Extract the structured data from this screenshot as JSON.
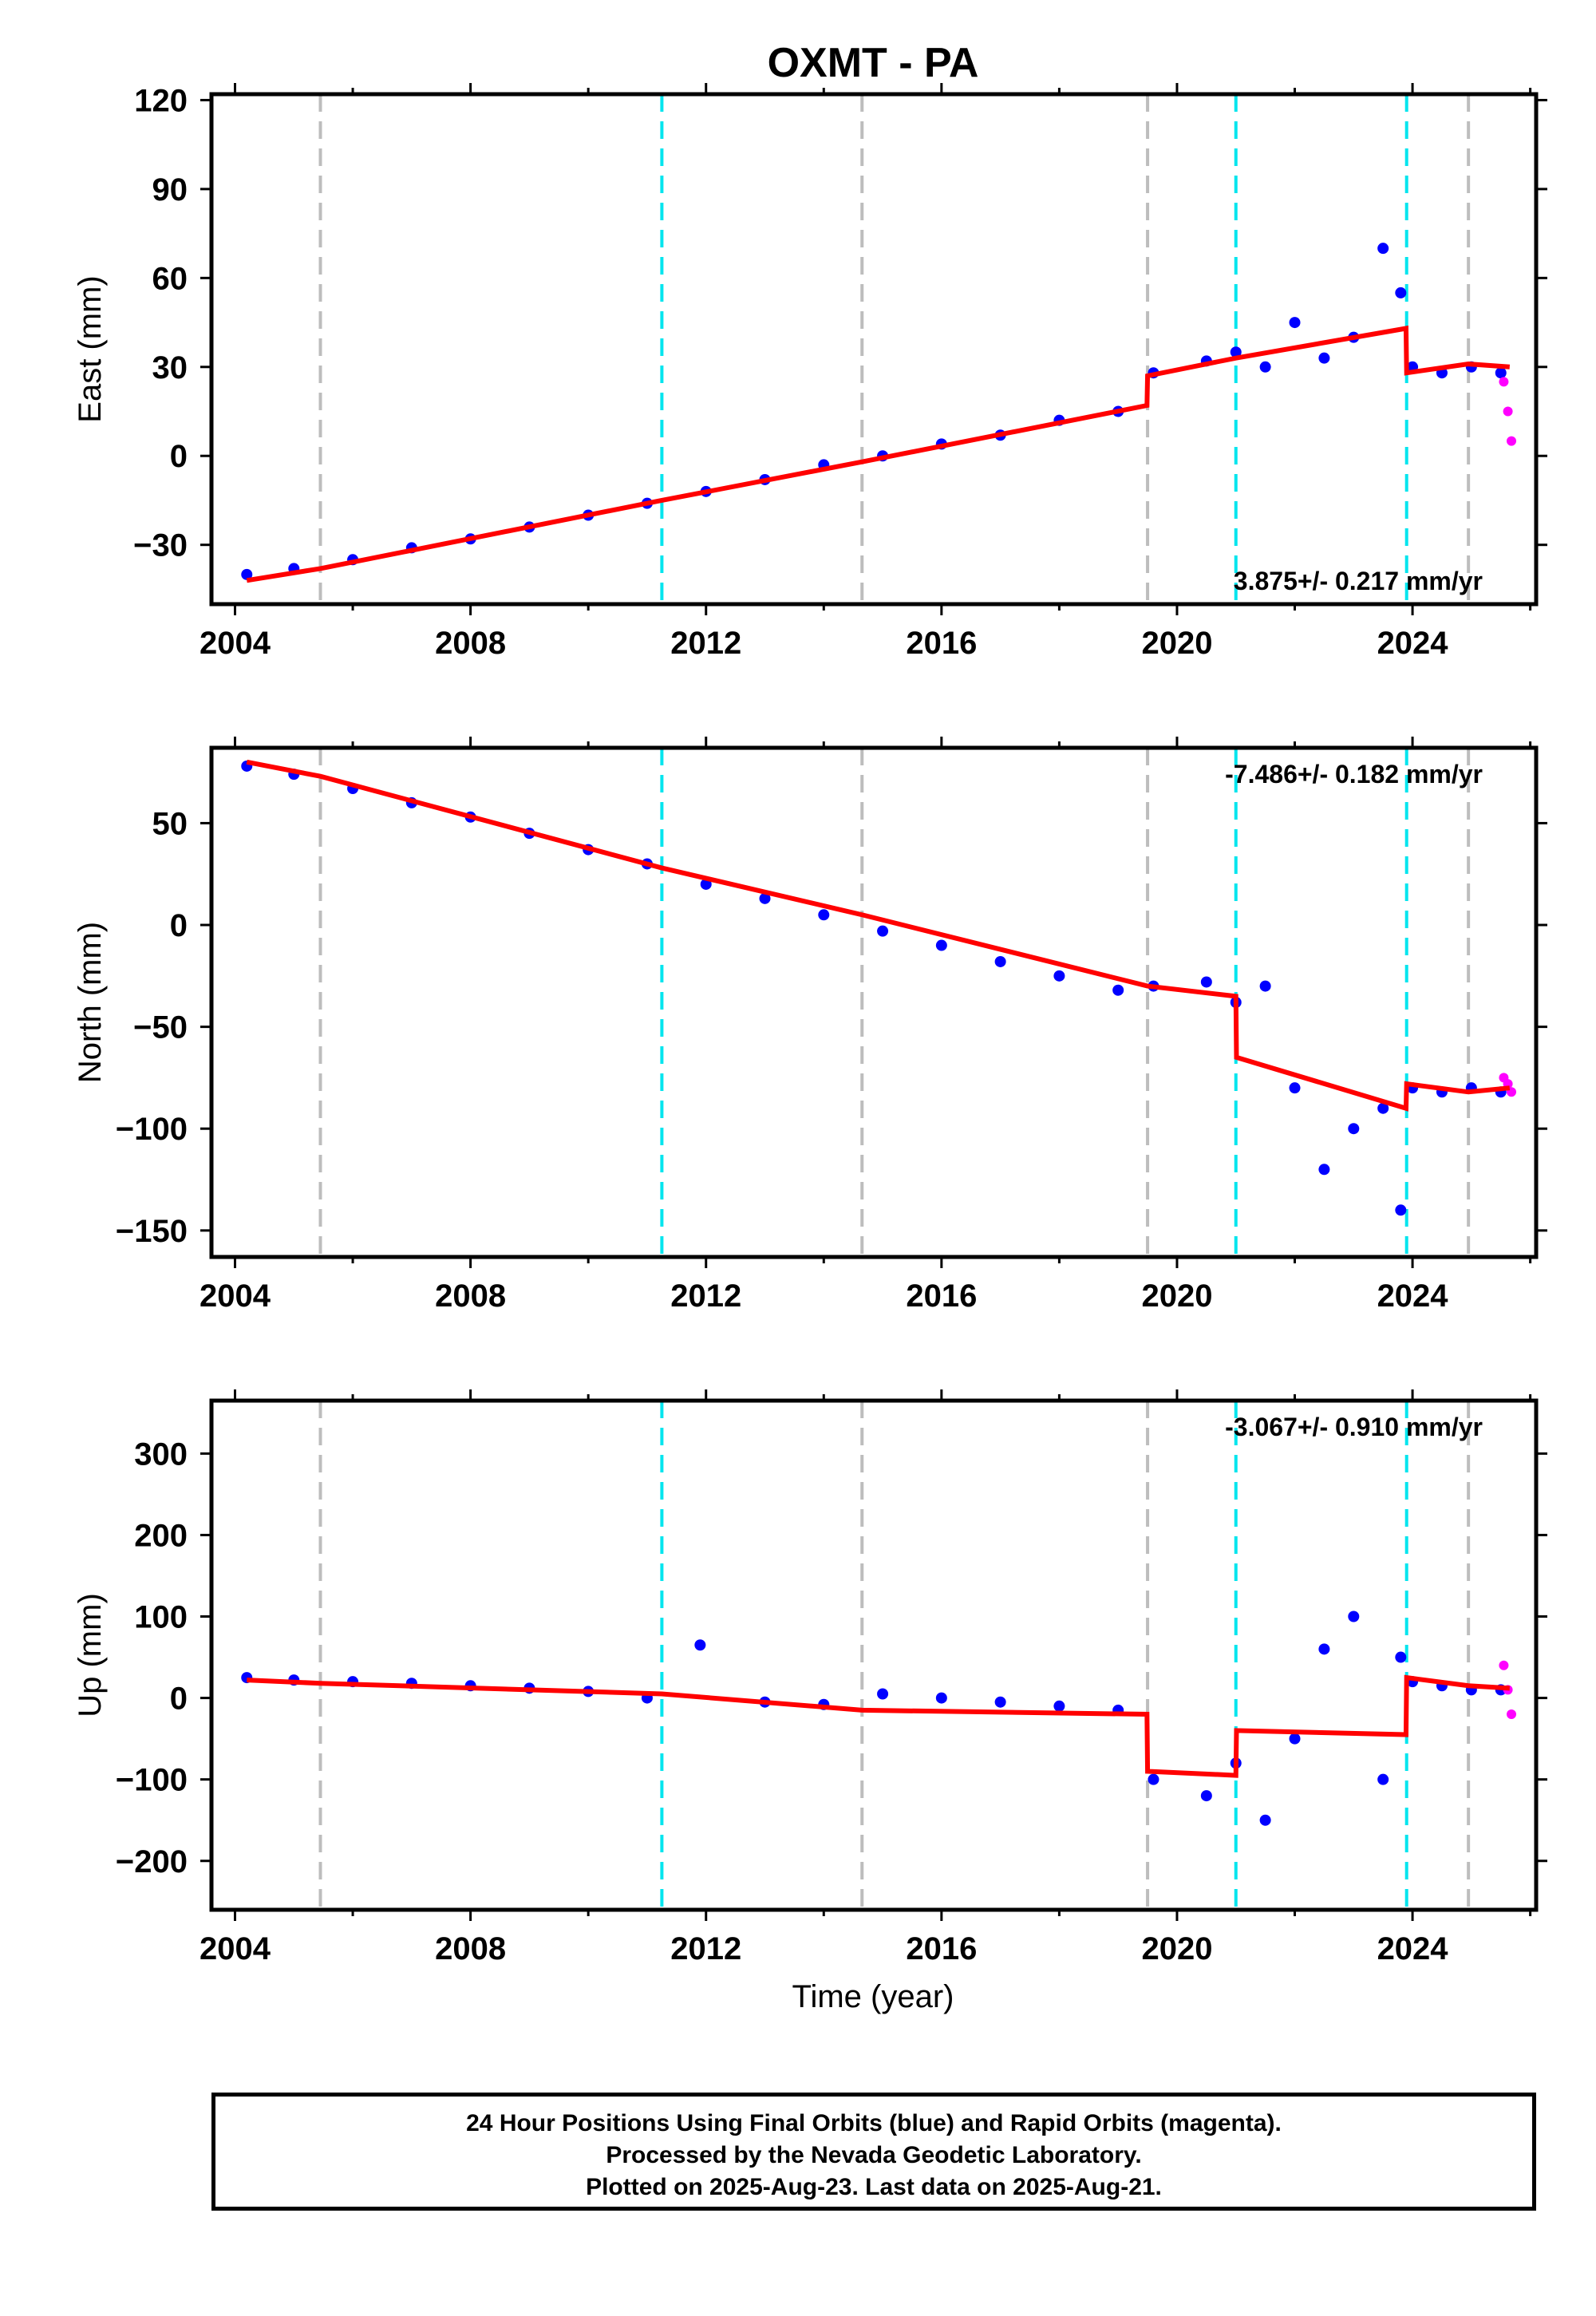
{
  "chart_data": {
    "type": "scatter",
    "title": "OXMT - PA",
    "xlabel": "Time (year)",
    "xlim": [
      2003.6,
      2026.1
    ],
    "x_ticks": [
      2004,
      2008,
      2012,
      2016,
      2020,
      2024
    ],
    "vertical_lines": {
      "gray_dashed": [
        2005.45,
        2014.65,
        2019.5,
        2024.95
      ],
      "cyan_dashed": [
        2011.25,
        2021.0,
        2023.9
      ]
    },
    "panels": [
      {
        "name": "east",
        "ylabel": "East (mm)",
        "ylim": [
          -50,
          122
        ],
        "y_ticks": [
          -30,
          0,
          30,
          60,
          90,
          120
        ],
        "rate_label": "3.875+/- 0.217 mm/yr",
        "series": [
          {
            "color": "#0000ff",
            "x": [
              2004.2,
              2005.0,
              2006.0,
              2007.0,
              2008.0,
              2009.0,
              2010.0,
              2011.0,
              2012.0,
              2013.0,
              2014.0,
              2015.0,
              2016.0,
              2017.0,
              2018.0,
              2019.0,
              2019.6,
              2020.5,
              2021.0,
              2021.5,
              2022.0,
              2022.5,
              2023.0,
              2023.5,
              2023.8,
              2024.0,
              2024.5,
              2025.0,
              2025.5
            ],
            "y": [
              -40,
              -38,
              -35,
              -31,
              -28,
              -24,
              -20,
              -16,
              -12,
              -8,
              -3,
              0,
              4,
              7,
              12,
              15,
              28,
              32,
              35,
              30,
              45,
              33,
              40,
              70,
              55,
              30,
              28,
              30,
              28
            ]
          },
          {
            "color": "#ff00ff",
            "x": [
              2025.55,
              2025.62,
              2025.68
            ],
            "y": [
              25,
              15,
              5
            ]
          },
          {
            "color": "#ff0000",
            "x": [
              2004.2,
              2005.45,
              2011.25,
              2014.65,
              2019.49,
              2019.5,
              2021.0,
              2023.89,
              2023.9,
              2024.95,
              2025.65
            ],
            "y": [
              -42,
              -38,
              -15,
              -2,
              17,
              27,
              33,
              43,
              28,
              31,
              30
            ]
          }
        ]
      },
      {
        "name": "north",
        "ylabel": "North (mm)",
        "ylim": [
          -163,
          87
        ],
        "y_ticks": [
          -150,
          -100,
          -50,
          0,
          50
        ],
        "rate_label": "-7.486+/- 0.182 mm/yr",
        "series": [
          {
            "color": "#0000ff",
            "x": [
              2004.2,
              2005.0,
              2006.0,
              2007.0,
              2008.0,
              2009.0,
              2010.0,
              2011.0,
              2012.0,
              2013.0,
              2014.0,
              2015.0,
              2016.0,
              2017.0,
              2018.0,
              2019.0,
              2019.6,
              2020.5,
              2021.0,
              2021.5,
              2022.0,
              2022.5,
              2023.0,
              2023.5,
              2023.8,
              2024.0,
              2024.5,
              2025.0,
              2025.5
            ],
            "y": [
              78,
              74,
              67,
              60,
              53,
              45,
              37,
              30,
              20,
              13,
              5,
              -3,
              -10,
              -18,
              -25,
              -32,
              -30,
              -28,
              -38,
              -30,
              -80,
              -120,
              -100,
              -90,
              -140,
              -80,
              -82,
              -80,
              -82
            ]
          },
          {
            "color": "#ff00ff",
            "x": [
              2025.55,
              2025.62,
              2025.68
            ],
            "y": [
              -75,
              -78,
              -82
            ]
          },
          {
            "color": "#ff0000",
            "x": [
              2004.2,
              2005.45,
              2011.25,
              2014.65,
              2019.5,
              2021.0,
              2021.01,
              2023.89,
              2023.9,
              2024.95,
              2025.65
            ],
            "y": [
              80,
              73,
              28,
              5,
              -30,
              -35,
              -65,
              -90,
              -78,
              -82,
              -80
            ]
          }
        ]
      },
      {
        "name": "up",
        "ylabel": "Up (mm)",
        "ylim": [
          -260,
          365
        ],
        "y_ticks": [
          -200,
          -100,
          0,
          100,
          200,
          300
        ],
        "rate_label": "-3.067+/- 0.910 mm/yr",
        "series": [
          {
            "color": "#0000ff",
            "x": [
              2004.2,
              2005.0,
              2006.0,
              2007.0,
              2008.0,
              2009.0,
              2010.0,
              2011.0,
              2011.9,
              2013.0,
              2014.0,
              2015.0,
              2016.0,
              2017.0,
              2018.0,
              2019.0,
              2019.6,
              2020.5,
              2021.0,
              2021.5,
              2022.0,
              2022.5,
              2023.0,
              2023.5,
              2023.8,
              2024.0,
              2024.5,
              2025.0,
              2025.5
            ],
            "y": [
              25,
              22,
              20,
              18,
              15,
              12,
              8,
              0,
              65,
              -5,
              -8,
              5,
              0,
              -5,
              -10,
              -15,
              -100,
              -120,
              -80,
              -150,
              -50,
              60,
              100,
              -100,
              50,
              20,
              15,
              10,
              10
            ]
          },
          {
            "color": "#ff00ff",
            "x": [
              2025.55,
              2025.62,
              2025.68
            ],
            "y": [
              40,
              10,
              -20
            ]
          },
          {
            "color": "#ff0000",
            "x": [
              2004.2,
              2005.45,
              2011.25,
              2014.65,
              2019.49,
              2019.5,
              2021.0,
              2021.01,
              2023.89,
              2023.9,
              2024.95,
              2025.65
            ],
            "y": [
              22,
              18,
              5,
              -15,
              -20,
              -90,
              -95,
              -40,
              -45,
              25,
              15,
              12
            ]
          }
        ]
      }
    ]
  },
  "footer": {
    "line1": "24 Hour Positions Using Final Orbits (blue) and Rapid Orbits (magenta).",
    "line2": "Processed by the Nevada Geodetic Laboratory.",
    "line3": "Plotted on 2025-Aug-23. Last data on 2025-Aug-21."
  }
}
